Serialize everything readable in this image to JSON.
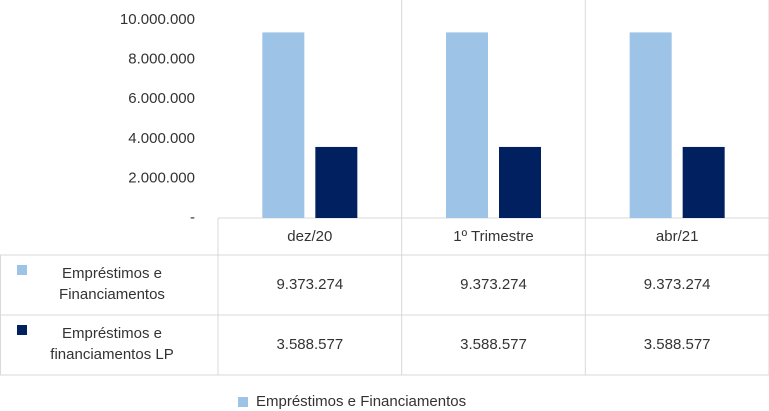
{
  "chart_data": {
    "type": "bar",
    "categories": [
      "dez/20",
      "1º Trimestre",
      "abr/21"
    ],
    "series": [
      {
        "name": "Empréstimos e Financiamentos",
        "color": "#9dc3e6",
        "values": [
          9373274,
          9373274,
          9373274
        ],
        "value_labels": [
          "9.373.274",
          "9.373.274",
          "9.373.274"
        ]
      },
      {
        "name": "Empréstimos e financiamentos LP",
        "color": "#002060",
        "values": [
          3588577,
          3588577,
          3588577
        ],
        "value_labels": [
          "3.588.577",
          "3.588.577",
          "3.588.577"
        ]
      }
    ],
    "ylim": [
      0,
      10000000
    ],
    "yticks": [
      {
        "value": 0,
        "label": "-"
      },
      {
        "value": 2000000,
        "label": "2.000.000"
      },
      {
        "value": 4000000,
        "label": "4.000.000"
      },
      {
        "value": 6000000,
        "label": "6.000.000"
      },
      {
        "value": 8000000,
        "label": "8.000.000"
      },
      {
        "value": 10000000,
        "label": "10.000.000"
      }
    ],
    "grid": false,
    "legend": "bottom"
  }
}
